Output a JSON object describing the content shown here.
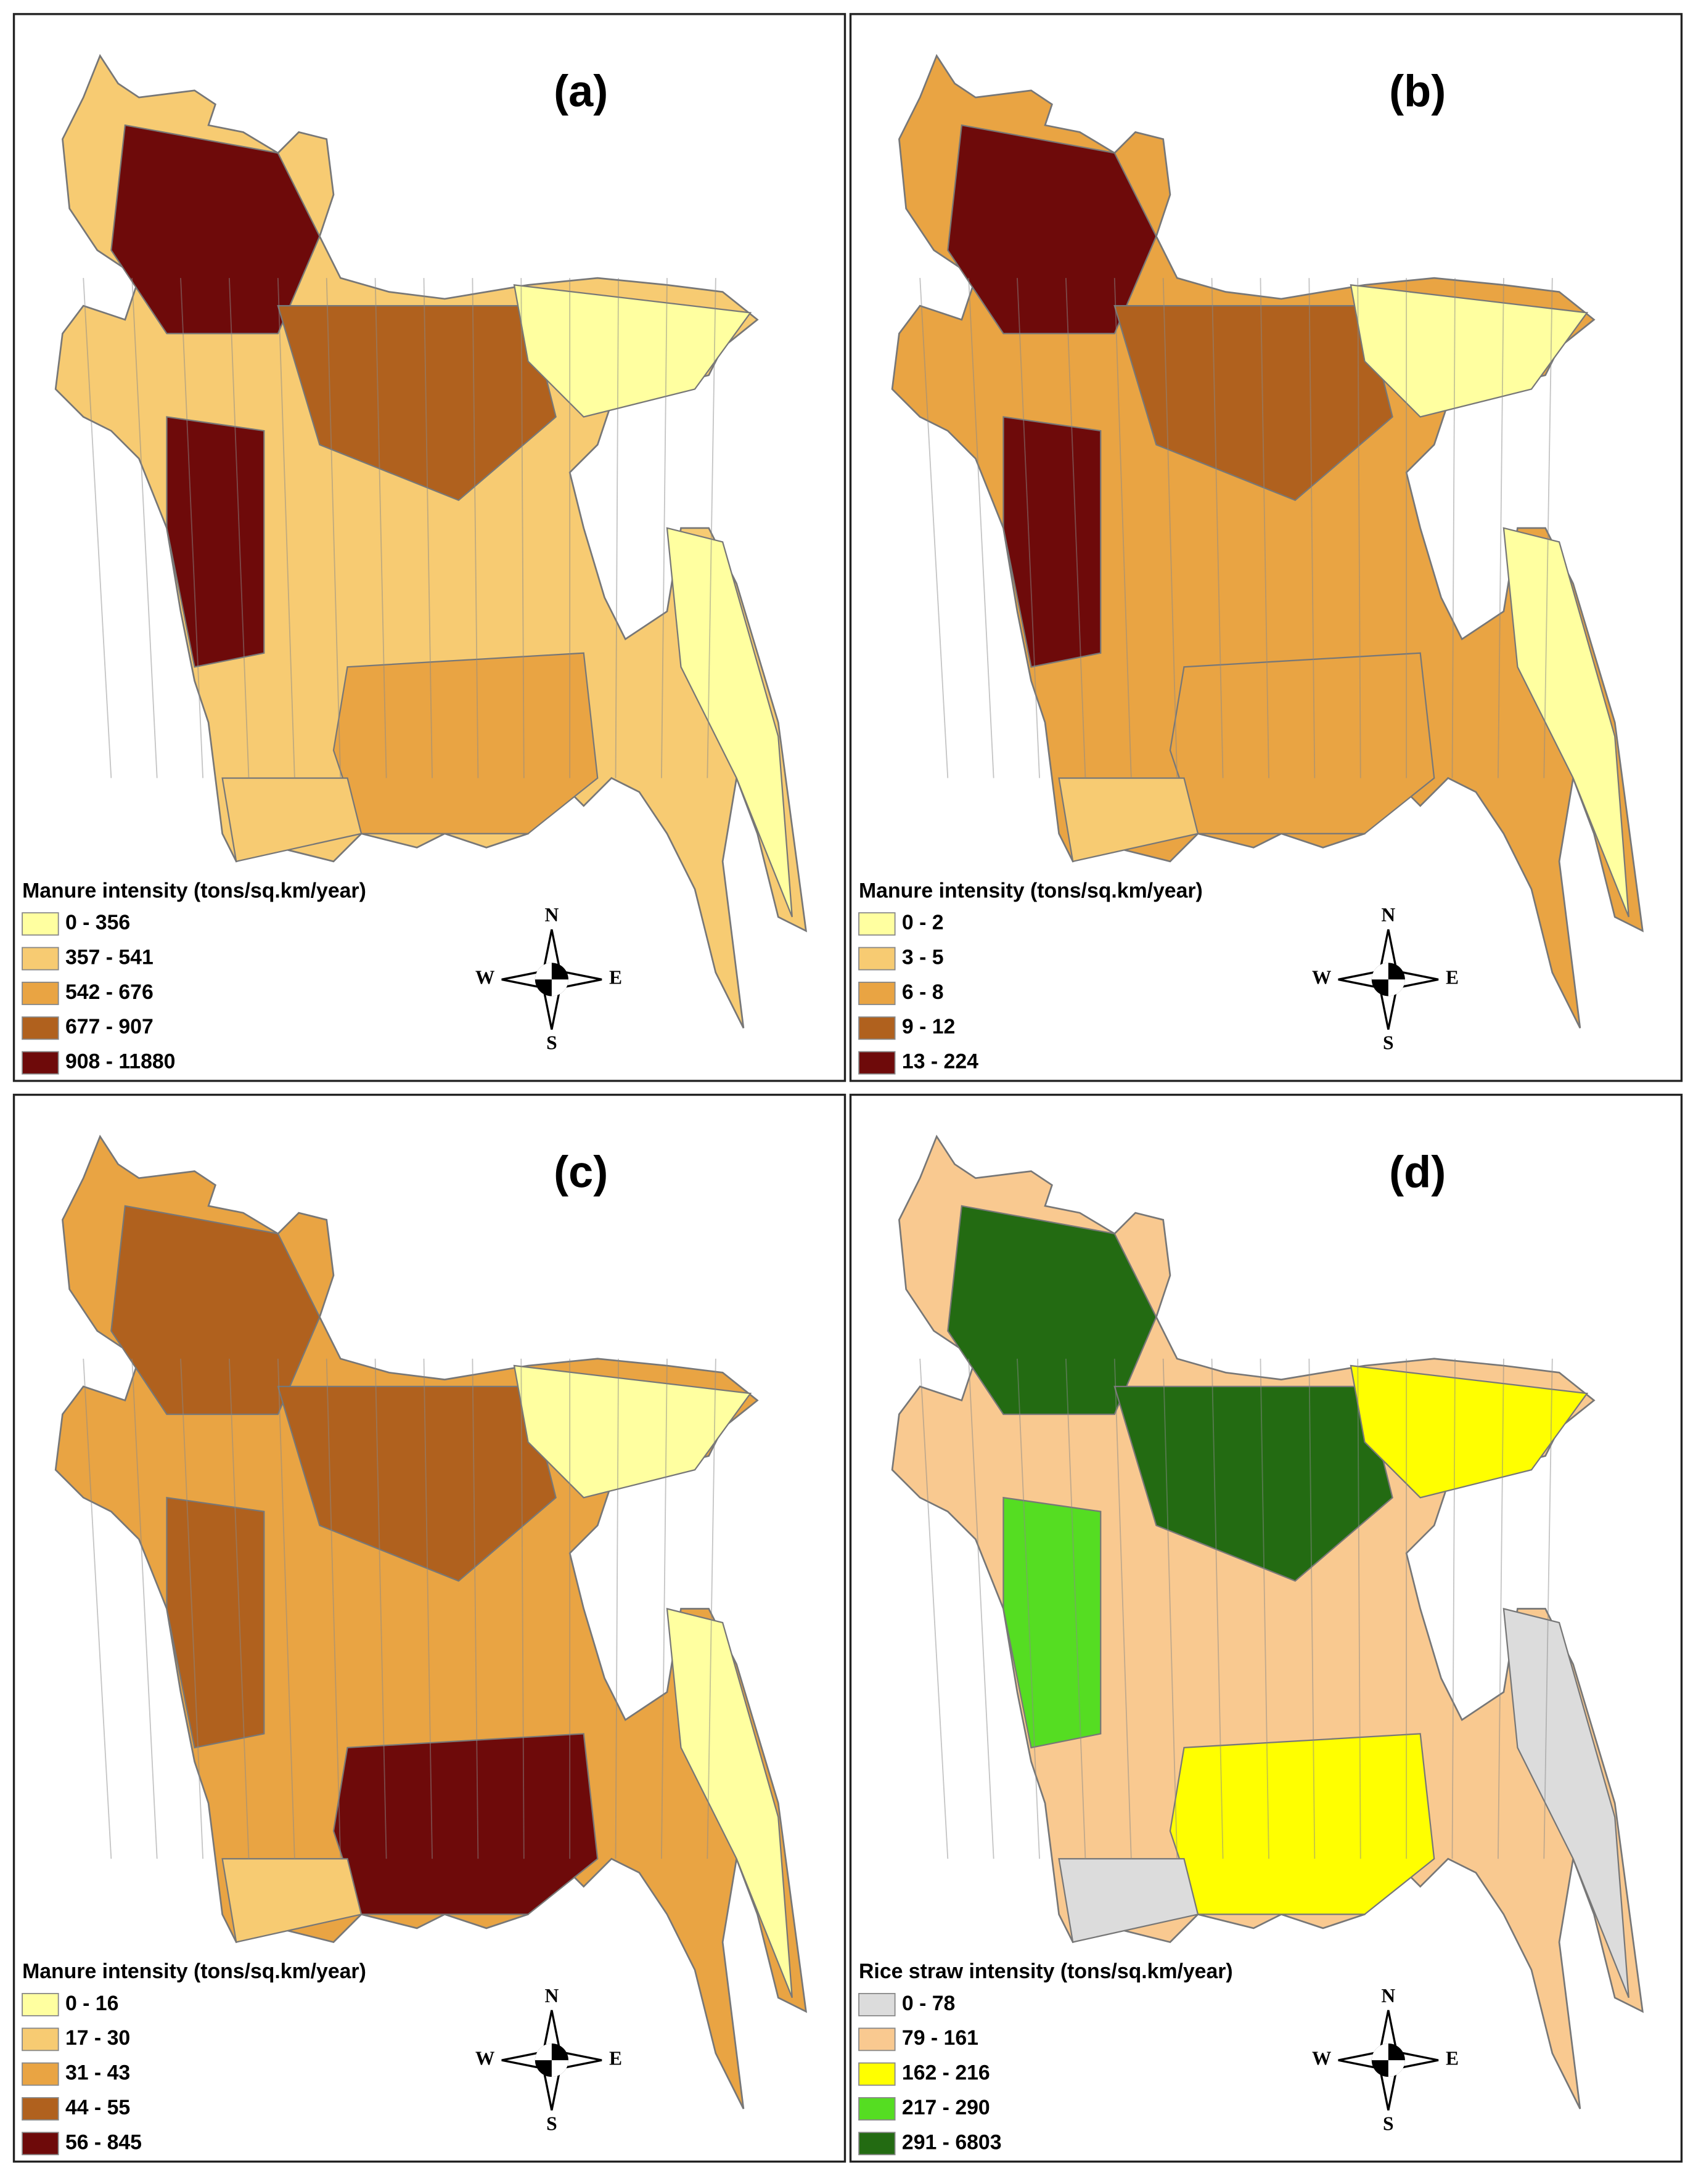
{
  "panels": [
    {
      "label": "(a)",
      "legend_title": "Manure intensity (tons/sq.km/year)",
      "legend": [
        {
          "label": "0 - 356",
          "color": "#ffffa0"
        },
        {
          "label": "357 - 541",
          "color": "#f7cb72"
        },
        {
          "label": "542 - 676",
          "color": "#e9a443"
        },
        {
          "label": "677 - 907",
          "color": "#b0611e"
        },
        {
          "label": "908 - 11880",
          "color": "#6e0a0a"
        }
      ],
      "compass": {
        "n": "N",
        "e": "E",
        "s": "S",
        "w": "W"
      }
    },
    {
      "label": "(b)",
      "legend_title": "Manure intensity (tons/sq.km/year)",
      "legend": [
        {
          "label": "0 - 2",
          "color": "#ffffa0"
        },
        {
          "label": "3 - 5",
          "color": "#f7cb72"
        },
        {
          "label": "6 - 8",
          "color": "#e9a443"
        },
        {
          "label": "9 - 12",
          "color": "#b0611e"
        },
        {
          "label": "13 - 224",
          "color": "#6e0a0a"
        }
      ],
      "compass": {
        "n": "N",
        "e": "E",
        "s": "S",
        "w": "W"
      }
    },
    {
      "label": "(c)",
      "legend_title": "Manure intensity (tons/sq.km/year)",
      "legend": [
        {
          "label": "0 - 16",
          "color": "#ffffa0"
        },
        {
          "label": "17 - 30",
          "color": "#f7cb72"
        },
        {
          "label": "31 - 43",
          "color": "#e9a443"
        },
        {
          "label": "44 - 55",
          "color": "#b0611e"
        },
        {
          "label": "56 - 845",
          "color": "#6e0a0a"
        }
      ],
      "compass": {
        "n": "N",
        "e": "E",
        "s": "S",
        "w": "W"
      }
    },
    {
      "label": "(d)",
      "legend_title": "Rice straw intensity (tons/sq.km/year)",
      "legend": [
        {
          "label": "0 - 78",
          "color": "#dcdcdc"
        },
        {
          "label": "79 - 161",
          "color": "#f9c990"
        },
        {
          "label": "162 - 216",
          "color": "#ffff00"
        },
        {
          "label": "217 - 290",
          "color": "#55dd22"
        },
        {
          "label": "291 - 6803",
          "color": "#236b12"
        }
      ],
      "compass": {
        "n": "N",
        "e": "E",
        "s": "S",
        "w": "W"
      }
    }
  ]
}
